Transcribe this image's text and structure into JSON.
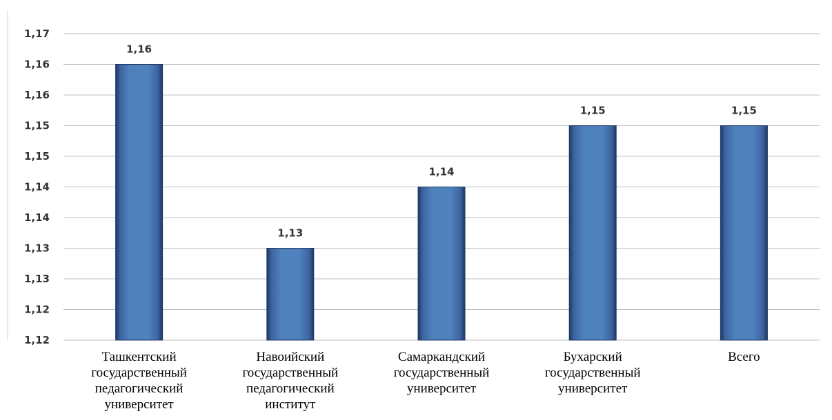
{
  "chart_data": {
    "type": "bar",
    "title": "",
    "xlabel": "",
    "ylabel": "",
    "categories": [
      [
        "Ташкентский",
        "государственный",
        "педагогический",
        "университет"
      ],
      [
        "Навоийский",
        "государственный",
        "педагогический",
        "институт"
      ],
      [
        "Самаркандский",
        "государственный",
        "университет"
      ],
      [
        "Бухарский",
        "государственный",
        "университет"
      ],
      [
        "Всего"
      ]
    ],
    "values": [
      1.16,
      1.13,
      1.14,
      1.15,
      1.15
    ],
    "data_labels": [
      "1,16",
      "1,13",
      "1,14",
      "1,15",
      "1,15"
    ],
    "ylim": [
      1.115,
      1.165
    ],
    "y_ticks": [
      {
        "value": 1.115,
        "label": "1,12"
      },
      {
        "value": 1.12,
        "label": "1,12"
      },
      {
        "value": 1.125,
        "label": "1,13"
      },
      {
        "value": 1.13,
        "label": "1,13"
      },
      {
        "value": 1.135,
        "label": "1,14"
      },
      {
        "value": 1.14,
        "label": "1,14"
      },
      {
        "value": 1.145,
        "label": "1,15"
      },
      {
        "value": 1.15,
        "label": "1,15"
      },
      {
        "value": 1.155,
        "label": "1,16"
      },
      {
        "value": 1.16,
        "label": "1,16"
      },
      {
        "value": 1.165,
        "label": "1,17"
      }
    ],
    "grid": true,
    "legend": "none",
    "colors": {
      "bar_fill": "#4f81bd",
      "bar_edge": "#1f3864",
      "gridline": "#bfbfbf"
    }
  }
}
